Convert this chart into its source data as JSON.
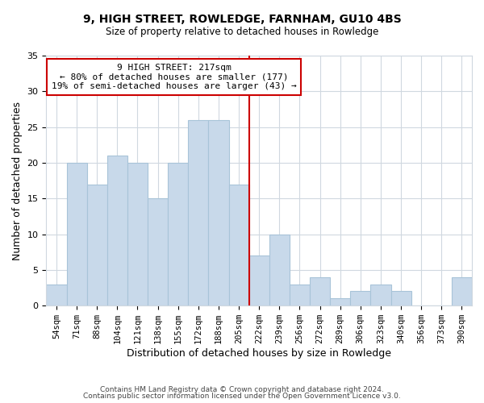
{
  "title": "9, HIGH STREET, ROWLEDGE, FARNHAM, GU10 4BS",
  "subtitle": "Size of property relative to detached houses in Rowledge",
  "xlabel": "Distribution of detached houses by size in Rowledge",
  "ylabel": "Number of detached properties",
  "footer_line1": "Contains HM Land Registry data © Crown copyright and database right 2024.",
  "footer_line2": "Contains public sector information licensed under the Open Government Licence v3.0.",
  "bin_labels": [
    "54sqm",
    "71sqm",
    "88sqm",
    "104sqm",
    "121sqm",
    "138sqm",
    "155sqm",
    "172sqm",
    "188sqm",
    "205sqm",
    "222sqm",
    "239sqm",
    "256sqm",
    "272sqm",
    "289sqm",
    "306sqm",
    "323sqm",
    "340sqm",
    "356sqm",
    "373sqm",
    "390sqm"
  ],
  "bar_heights": [
    3,
    20,
    17,
    21,
    20,
    15,
    20,
    26,
    26,
    17,
    7,
    10,
    3,
    4,
    1,
    2,
    3,
    2,
    0,
    0,
    4
  ],
  "bar_color": "#c8d9ea",
  "bar_edge_color": "#a8c4d8",
  "vline_color": "#cc0000",
  "annotation_title": "9 HIGH STREET: 217sqm",
  "annotation_line1": "← 80% of detached houses are smaller (177)",
  "annotation_line2": "19% of semi-detached houses are larger (43) →",
  "annotation_box_edge": "#cc0000",
  "ylim": [
    0,
    35
  ],
  "yticks": [
    0,
    5,
    10,
    15,
    20,
    25,
    30,
    35
  ],
  "grid_color": "#d0d8e0"
}
